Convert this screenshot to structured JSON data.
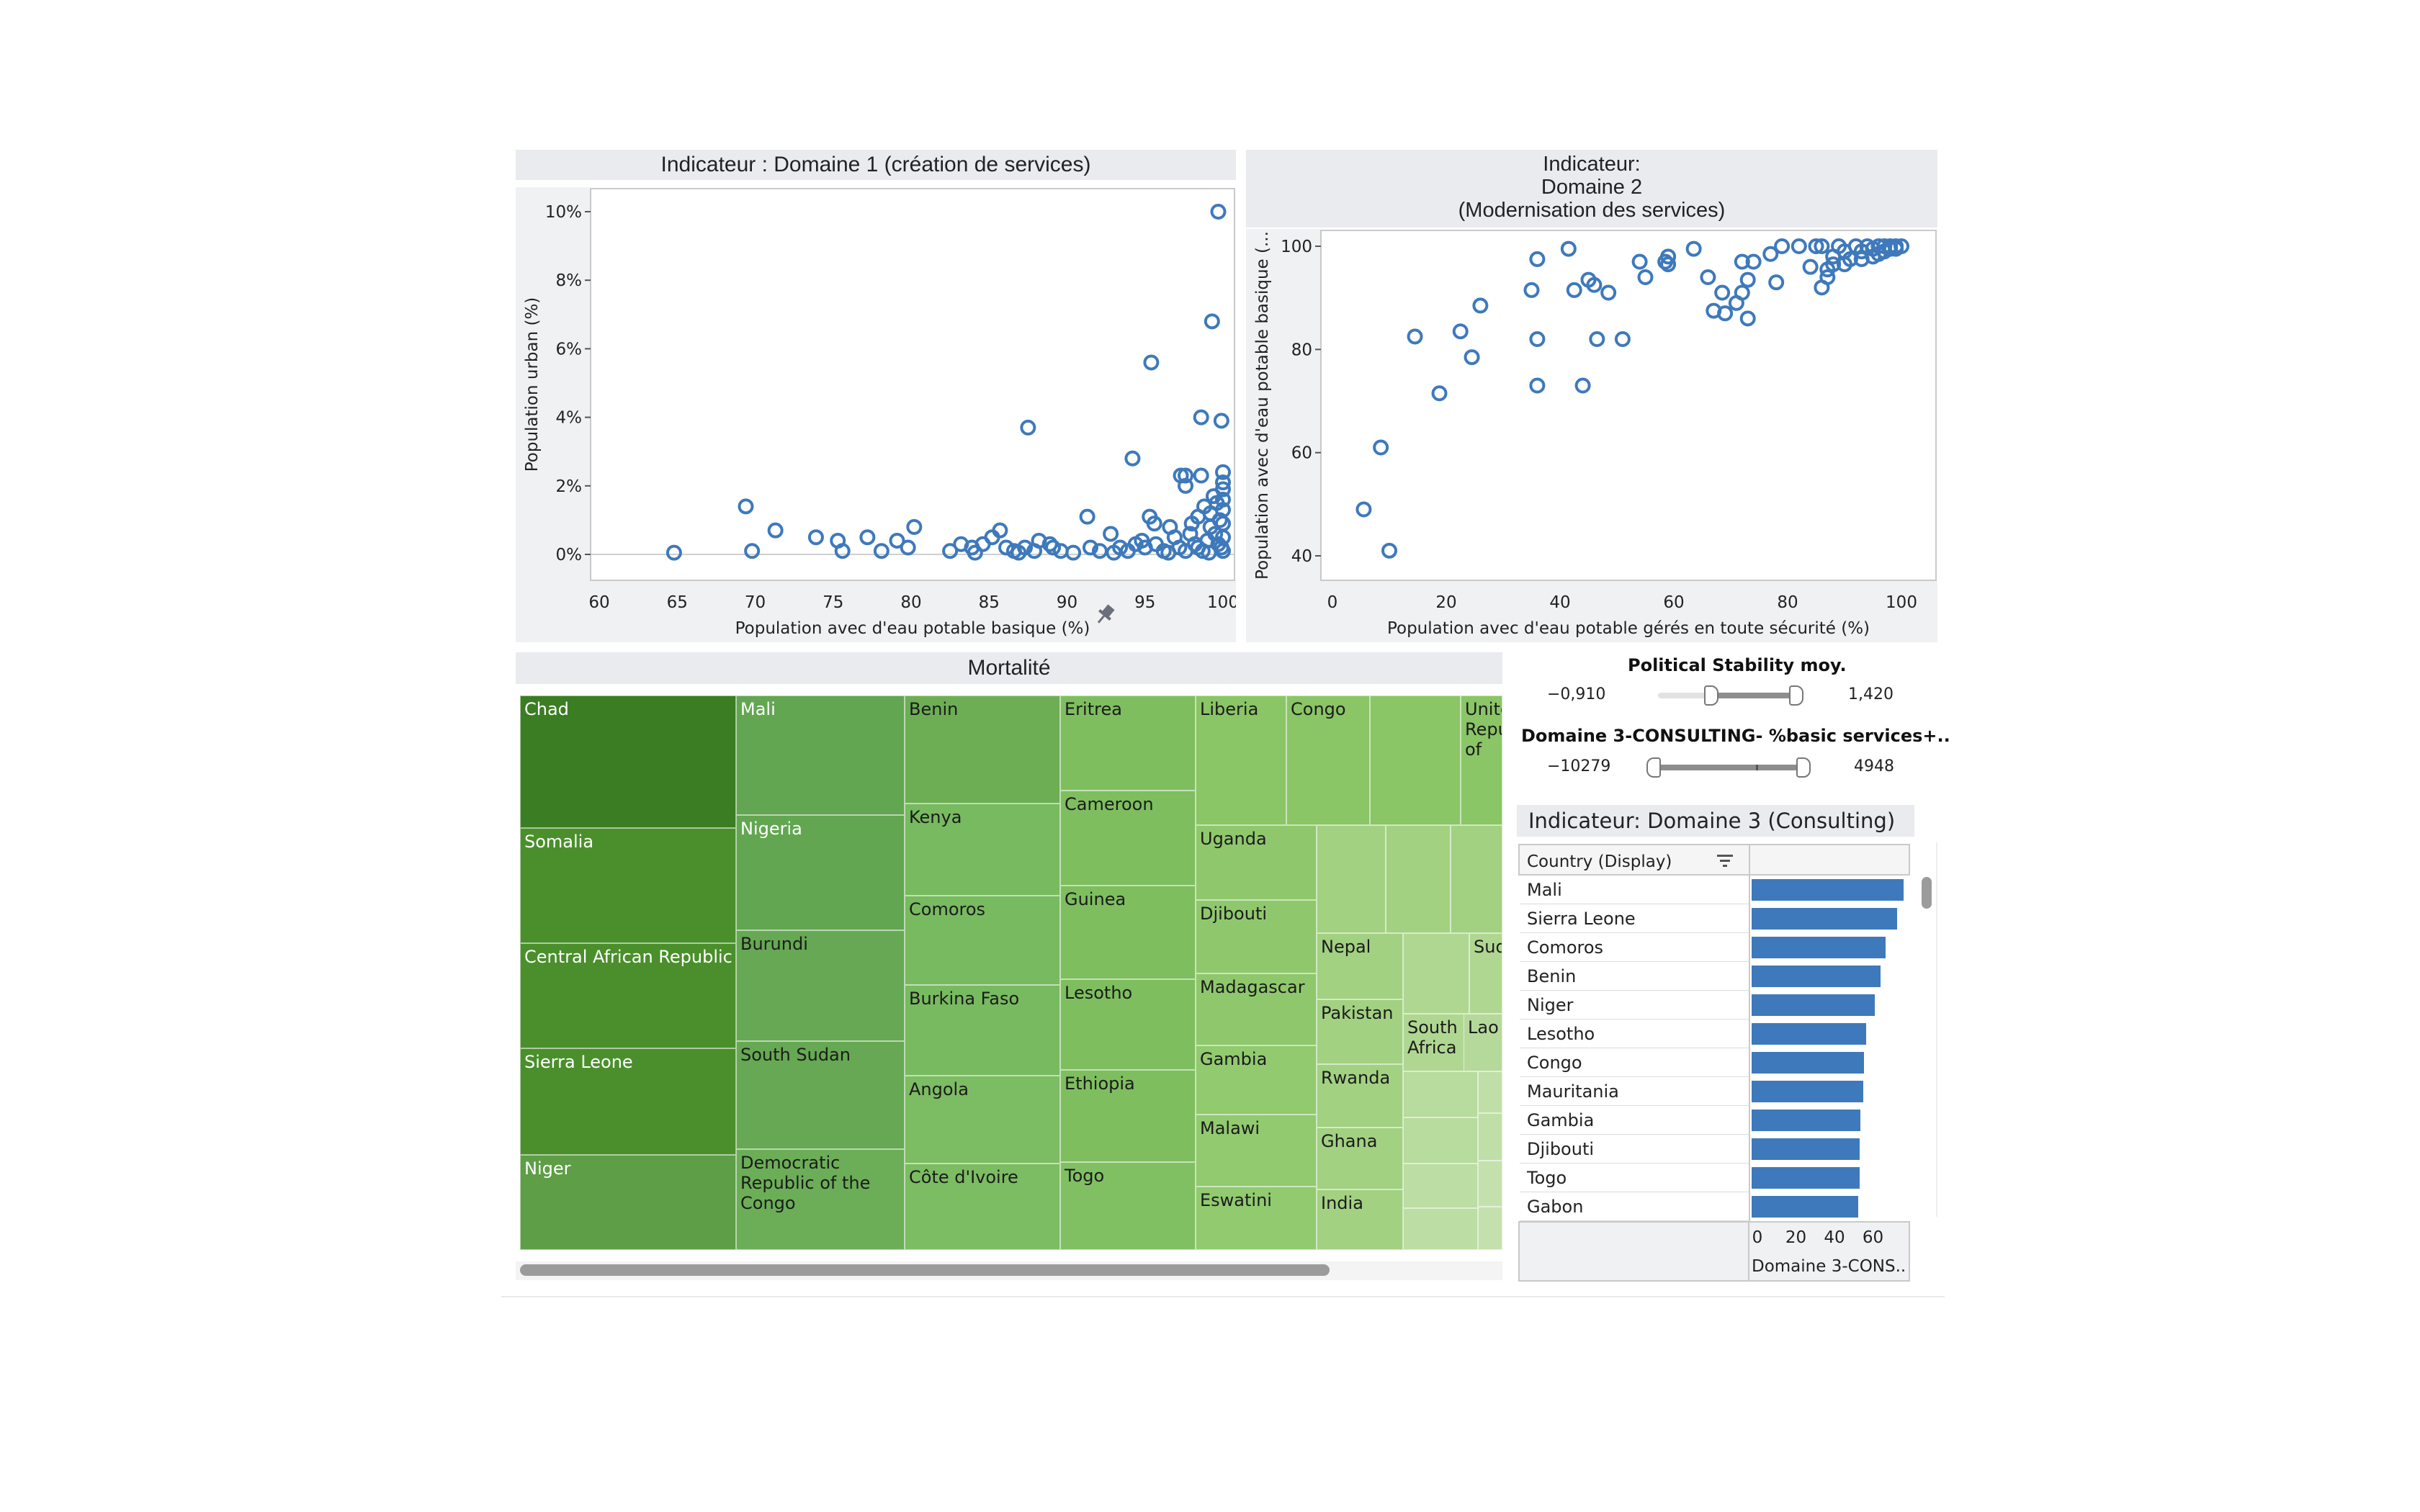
{
  "colors": {
    "point": "#3e79bb",
    "bar": "#3e79bb",
    "header_bg": "#e9ebef"
  },
  "chart_data": [
    {
      "type": "scatter",
      "title": "Indicateur : Domaine 1 (création de services)",
      "xlabel": "Population avec d'eau potable basique (%)",
      "ylabel": "Population urban (%)",
      "xlim": [
        60,
        100
      ],
      "ylim": [
        0,
        10
      ],
      "x_ticks": [
        "60",
        "65",
        "70",
        "75",
        "80",
        "85",
        "90",
        "95",
        "100"
      ],
      "y_ticks": [
        "0%",
        "2%",
        "4%",
        "6%",
        "8%",
        "10%"
      ],
      "points": [
        [
          99.7,
          10.0
        ],
        [
          99.3,
          6.8
        ],
        [
          95.4,
          5.6
        ],
        [
          87.5,
          3.7
        ],
        [
          98.6,
          4.0
        ],
        [
          99.9,
          3.9
        ],
        [
          94.2,
          2.8
        ],
        [
          97.3,
          2.3
        ],
        [
          97.6,
          2.3
        ],
        [
          98.6,
          2.3
        ],
        [
          100,
          2.4
        ],
        [
          100,
          2.1
        ],
        [
          100,
          1.9
        ],
        [
          97.6,
          2.0
        ],
        [
          99.4,
          1.7
        ],
        [
          100,
          1.6
        ],
        [
          99.6,
          1.5
        ],
        [
          98.8,
          1.4
        ],
        [
          99.2,
          1.2
        ],
        [
          100,
          1.3
        ],
        [
          98.4,
          1.1
        ],
        [
          95.3,
          1.1
        ],
        [
          95.6,
          0.9
        ],
        [
          91.3,
          1.1
        ],
        [
          69.4,
          1.4
        ],
        [
          71.3,
          0.7
        ],
        [
          73.9,
          0.5
        ],
        [
          75.3,
          0.4
        ],
        [
          77.2,
          0.5
        ],
        [
          79.1,
          0.4
        ],
        [
          80.2,
          0.8
        ],
        [
          64.8,
          0.05
        ],
        [
          69.8,
          0.1
        ],
        [
          75.6,
          0.1
        ],
        [
          78.1,
          0.1
        ],
        [
          79.8,
          0.2
        ],
        [
          82.5,
          0.1
        ],
        [
          83.2,
          0.3
        ],
        [
          83.9,
          0.2
        ],
        [
          84.6,
          0.3
        ],
        [
          85.2,
          0.5
        ],
        [
          85.7,
          0.7
        ],
        [
          86.1,
          0.2
        ],
        [
          86.6,
          0.1
        ],
        [
          87.3,
          0.2
        ],
        [
          87.9,
          0.1
        ],
        [
          88.2,
          0.4
        ],
        [
          89.1,
          0.2
        ],
        [
          89.6,
          0.1
        ],
        [
          90.4,
          0.05
        ],
        [
          91.5,
          0.2
        ],
        [
          92.1,
          0.1
        ],
        [
          92.8,
          0.6
        ],
        [
          93.4,
          0.2
        ],
        [
          93.9,
          0.1
        ],
        [
          94.4,
          0.3
        ],
        [
          95.0,
          0.2
        ],
        [
          95.7,
          0.3
        ],
        [
          96.2,
          0.1
        ],
        [
          96.6,
          0.8
        ],
        [
          96.9,
          0.5
        ],
        [
          97.2,
          0.2
        ],
        [
          97.6,
          0.1
        ],
        [
          97.9,
          0.6
        ],
        [
          98.2,
          0.3
        ],
        [
          98.4,
          0.2
        ],
        [
          98.7,
          0.1
        ],
        [
          99.0,
          0.4
        ],
        [
          99.2,
          0.8
        ],
        [
          99.5,
          0.6
        ],
        [
          99.7,
          0.3
        ],
        [
          99.9,
          0.2
        ],
        [
          100,
          0.5
        ],
        [
          100,
          0.9
        ],
        [
          100,
          0.1
        ],
        [
          99.8,
          1.0
        ],
        [
          99.1,
          0.05
        ],
        [
          98.0,
          0.9
        ],
        [
          96.5,
          0.05
        ],
        [
          94.8,
          0.4
        ],
        [
          93.0,
          0.05
        ],
        [
          88.9,
          0.3
        ],
        [
          86.9,
          0.05
        ],
        [
          84.1,
          0.05
        ]
      ]
    },
    {
      "type": "scatter",
      "title": "Indicateur:\nDomaine 2\n(Modernisation des services)",
      "xlabel": "Population avec d'eau potable gérés en toute sécurité (%)",
      "ylabel": "Population avec d'eau potable basique (...",
      "xlim": [
        0,
        100
      ],
      "ylim": [
        40,
        100
      ],
      "x_ticks": [
        "0",
        "20",
        "40",
        "60",
        "80",
        "100"
      ],
      "y_ticks": [
        "40",
        "60",
        "80",
        "100"
      ],
      "points": [
        [
          5.5,
          49
        ],
        [
          8.5,
          61
        ],
        [
          10,
          41
        ],
        [
          14.5,
          82.5
        ],
        [
          18.8,
          71.5
        ],
        [
          22.5,
          83.5
        ],
        [
          24.5,
          78.5
        ],
        [
          26,
          88.5
        ],
        [
          35,
          91.5
        ],
        [
          36,
          97.5
        ],
        [
          36,
          82
        ],
        [
          36,
          73
        ],
        [
          41.5,
          99.5
        ],
        [
          42.5,
          91.5
        ],
        [
          44,
          73
        ],
        [
          45,
          93.5
        ],
        [
          46,
          92.5
        ],
        [
          46.5,
          82
        ],
        [
          48.5,
          91
        ],
        [
          51,
          82
        ],
        [
          54,
          97
        ],
        [
          55,
          94
        ],
        [
          58.5,
          97
        ],
        [
          59,
          98
        ],
        [
          59,
          96.5
        ],
        [
          63.5,
          99.5
        ],
        [
          66,
          94
        ],
        [
          67,
          87.5
        ],
        [
          68.5,
          91
        ],
        [
          69,
          87
        ],
        [
          71,
          89
        ],
        [
          72,
          91
        ],
        [
          72,
          97
        ],
        [
          73,
          86
        ],
        [
          73,
          93.5
        ],
        [
          74,
          97
        ],
        [
          77,
          98.5
        ],
        [
          78,
          93
        ],
        [
          79,
          100
        ],
        [
          82,
          100
        ],
        [
          84,
          96
        ],
        [
          85,
          100
        ],
        [
          86,
          92
        ],
        [
          86,
          100
        ],
        [
          87,
          94
        ],
        [
          87,
          95.5
        ],
        [
          88,
          98
        ],
        [
          88,
          96.5
        ],
        [
          89,
          100
        ],
        [
          90,
          96.5
        ],
        [
          90,
          99
        ],
        [
          91,
          97.5
        ],
        [
          92,
          100
        ],
        [
          93,
          99
        ],
        [
          93,
          97.5
        ],
        [
          94,
          100
        ],
        [
          95,
          98
        ],
        [
          95,
          99.5
        ],
        [
          96,
          100
        ],
        [
          96,
          98.5
        ],
        [
          97,
          100
        ],
        [
          97,
          99
        ],
        [
          98,
          100
        ],
        [
          98,
          99.5
        ],
        [
          99,
          100
        ],
        [
          99,
          99.5
        ],
        [
          100,
          100
        ]
      ]
    },
    {
      "type": "bar",
      "title": "Indicateur: Domaine 3 (Consulting)",
      "column_header": "Country (Display)",
      "xlabel": "Domaine 3-CONS..",
      "x_ticks": [
        "0",
        "20",
        "40",
        "60"
      ],
      "xlim": [
        0,
        80
      ],
      "categories": [
        "Mali",
        "Sierra Leone",
        "Comoros",
        "Benin",
        "Niger",
        "Lesotho",
        "Congo",
        "Mauritania",
        "Gambia",
        "Djibouti",
        "Togo",
        "Gabon"
      ],
      "values": [
        79,
        75.5,
        69.5,
        67,
        64,
        59.5,
        58.5,
        58,
        56.5,
        56,
        56,
        55.5
      ]
    }
  ],
  "treemap": {
    "title": "Mortalité",
    "cells": [
      {
        "label": "Chad",
        "color": "#3a7d22",
        "text": "light"
      },
      {
        "label": "Somalia",
        "color": "#4a8f2b",
        "text": "light"
      },
      {
        "label": "Central African Republic",
        "color": "#4a8f2b",
        "text": "light"
      },
      {
        "label": "Sierra Leone",
        "color": "#4a8f2b",
        "text": "light"
      },
      {
        "label": "Niger",
        "color": "#5d9e46",
        "text": "light"
      },
      {
        "label": "Mali",
        "color": "#62a651",
        "text": "light"
      },
      {
        "label": "Nigeria",
        "color": "#62a651",
        "text": "light"
      },
      {
        "label": "Burundi",
        "color": "#66a853",
        "text": "dark"
      },
      {
        "label": "South Sudan",
        "color": "#66a853",
        "text": "dark"
      },
      {
        "label": "Democratic Republic of the Congo",
        "color": "#6bae57",
        "text": "dark"
      },
      {
        "label": "Benin",
        "color": "#6dae55",
        "text": "dark"
      },
      {
        "label": "Kenya",
        "color": "#78ba60",
        "text": "dark"
      },
      {
        "label": "Comoros",
        "color": "#78ba60",
        "text": "dark"
      },
      {
        "label": "Burkina Faso",
        "color": "#78ba60",
        "text": "dark"
      },
      {
        "label": "Angola",
        "color": "#7cbc62",
        "text": "dark"
      },
      {
        "label": "Côte d'Ivoire",
        "color": "#7cbc62",
        "text": "dark"
      },
      {
        "label": "Eritrea",
        "color": "#7ebe5f",
        "text": "dark"
      },
      {
        "label": "Cameroon",
        "color": "#7ebe5f",
        "text": "dark"
      },
      {
        "label": "Guinea",
        "color": "#7ebe5f",
        "text": "dark"
      },
      {
        "label": "Lesotho",
        "color": "#7ebe5f",
        "text": "dark"
      },
      {
        "label": "Ethiopia",
        "color": "#7ebe5f",
        "text": "dark"
      },
      {
        "label": "Togo",
        "color": "#80c062",
        "text": "dark"
      },
      {
        "label": "Liberia",
        "color": "#8ac566",
        "text": "dark"
      },
      {
        "label": "Congo",
        "color": "#8ac566",
        "text": "dark"
      },
      {
        "label": "United Republic of",
        "color": "#8ac566",
        "text": "dark"
      },
      {
        "label": "Uganda",
        "color": "#8fc86c",
        "text": "dark"
      },
      {
        "label": "Djibouti",
        "color": "#8fc86c",
        "text": "dark"
      },
      {
        "label": "Madagascar",
        "color": "#8fc86c",
        "text": "dark"
      },
      {
        "label": "Gambia",
        "color": "#91ca6f",
        "text": "dark"
      },
      {
        "label": "Malawi",
        "color": "#91ca6f",
        "text": "dark"
      },
      {
        "label": "Eswatini",
        "color": "#91ca6f",
        "text": "dark"
      },
      {
        "label": "Nepal",
        "color": "#a2d182",
        "text": "dark"
      },
      {
        "label": "Pakistan",
        "color": "#a2d182",
        "text": "dark"
      },
      {
        "label": "Rwanda",
        "color": "#a2d182",
        "text": "dark"
      },
      {
        "label": "Ghana",
        "color": "#a2d182",
        "text": "dark"
      },
      {
        "label": "India",
        "color": "#a2d182",
        "text": "dark"
      },
      {
        "label": "Sudan",
        "color": "#b0d792",
        "text": "dark"
      },
      {
        "label": "South Africa",
        "color": "#b0d792",
        "text": "dark"
      },
      {
        "label": "Lao",
        "color": "#b5d99a",
        "text": "dark"
      }
    ]
  },
  "filters": {
    "political": {
      "title": "Political Stability moy.",
      "min": "−0,910",
      "max": "1,420"
    },
    "domaine3": {
      "title": "Domaine 3-CONSULTING-  %basic services+..",
      "min": "−10279",
      "max": "4948"
    }
  },
  "pin_icon": "pin-icon",
  "sort_icon": "sort-icon"
}
